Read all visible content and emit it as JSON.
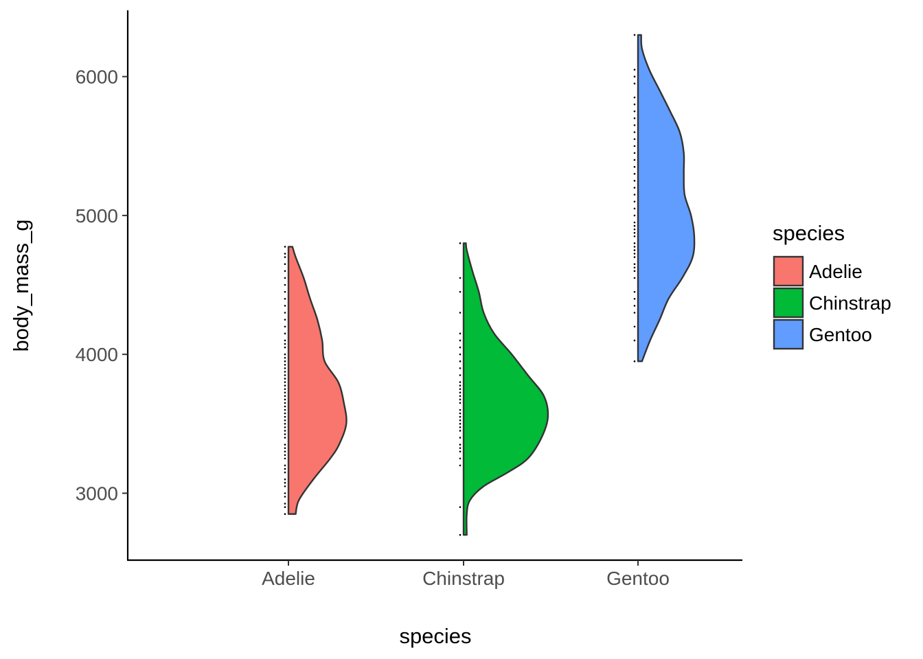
{
  "chart_data": {
    "type": "half-violin",
    "xlabel": "species",
    "ylabel": "body_mass_g",
    "ylim": [
      2550,
      6450
    ],
    "yticks": [
      3000,
      4000,
      5000,
      6000
    ],
    "grid": false,
    "legend": {
      "title": "species",
      "position": "right",
      "entries": [
        "Adelie",
        "Chinstrap",
        "Gentoo"
      ]
    },
    "categories": [
      "Adelie",
      "Chinstrap",
      "Gentoo"
    ],
    "series": [
      {
        "name": "Adelie",
        "color": "#F8766D",
        "range": [
          2850,
          4775
        ],
        "density": [
          [
            2850,
            0.09
          ],
          [
            2950,
            0.13
          ],
          [
            3100,
            0.31
          ],
          [
            3250,
            0.52
          ],
          [
            3350,
            0.63
          ],
          [
            3500,
            0.72
          ],
          [
            3650,
            0.69
          ],
          [
            3800,
            0.62
          ],
          [
            3950,
            0.45
          ],
          [
            4100,
            0.42
          ],
          [
            4250,
            0.36
          ],
          [
            4400,
            0.27
          ],
          [
            4550,
            0.19
          ],
          [
            4700,
            0.09
          ],
          [
            4775,
            0.05
          ]
        ],
        "points": [
          2850,
          2900,
          2925,
          2975,
          3000,
          3050,
          3075,
          3100,
          3150,
          3175,
          3200,
          3250,
          3275,
          3300,
          3325,
          3350,
          3400,
          3425,
          3450,
          3475,
          3500,
          3525,
          3550,
          3575,
          3600,
          3625,
          3650,
          3675,
          3700,
          3725,
          3750,
          3775,
          3800,
          3825,
          3850,
          3875,
          3900,
          3925,
          3950,
          3975,
          4000,
          4050,
          4075,
          4100,
          4150,
          4200,
          4250,
          4300,
          4350,
          4400,
          4450,
          4500,
          4550,
          4600,
          4650,
          4700,
          4725,
          4775
        ]
      },
      {
        "name": "Chinstrap",
        "color": "#00BA38",
        "range": [
          2700,
          4800
        ],
        "density": [
          [
            2700,
            0.04
          ],
          [
            2850,
            0.04
          ],
          [
            2950,
            0.08
          ],
          [
            3050,
            0.25
          ],
          [
            3150,
            0.55
          ],
          [
            3250,
            0.8
          ],
          [
            3400,
            0.97
          ],
          [
            3550,
            1.05
          ],
          [
            3700,
            1.0
          ],
          [
            3850,
            0.8
          ],
          [
            4000,
            0.6
          ],
          [
            4150,
            0.38
          ],
          [
            4300,
            0.25
          ],
          [
            4450,
            0.19
          ],
          [
            4600,
            0.11
          ],
          [
            4750,
            0.04
          ],
          [
            4800,
            0.03
          ]
        ],
        "points": [
          2700,
          2900,
          3200,
          3250,
          3300,
          3325,
          3350,
          3400,
          3450,
          3475,
          3500,
          3525,
          3550,
          3575,
          3600,
          3650,
          3675,
          3700,
          3725,
          3750,
          3775,
          3800,
          3850,
          3900,
          3950,
          4000,
          4050,
          4100,
          4150,
          4300,
          4450,
          4550,
          4800
        ]
      },
      {
        "name": "Gentoo",
        "color": "#619CFF",
        "range": [
          3950,
          6300
        ],
        "density": [
          [
            3950,
            0.05
          ],
          [
            4100,
            0.15
          ],
          [
            4250,
            0.27
          ],
          [
            4400,
            0.38
          ],
          [
            4550,
            0.55
          ],
          [
            4700,
            0.68
          ],
          [
            4850,
            0.7
          ],
          [
            5000,
            0.66
          ],
          [
            5150,
            0.58
          ],
          [
            5300,
            0.57
          ],
          [
            5450,
            0.57
          ],
          [
            5600,
            0.52
          ],
          [
            5750,
            0.4
          ],
          [
            5900,
            0.27
          ],
          [
            6050,
            0.14
          ],
          [
            6200,
            0.05
          ],
          [
            6300,
            0.04
          ]
        ],
        "points": [
          3950,
          4100,
          4200,
          4300,
          4350,
          4400,
          4450,
          4550,
          4600,
          4625,
          4650,
          4700,
          4725,
          4750,
          4775,
          4800,
          4850,
          4875,
          4900,
          4925,
          4950,
          5000,
          5050,
          5100,
          5150,
          5200,
          5250,
          5300,
          5350,
          5400,
          5450,
          5500,
          5550,
          5600,
          5650,
          5700,
          5750,
          5800,
          5850,
          5950,
          6000,
          6050,
          6300
        ]
      }
    ]
  }
}
